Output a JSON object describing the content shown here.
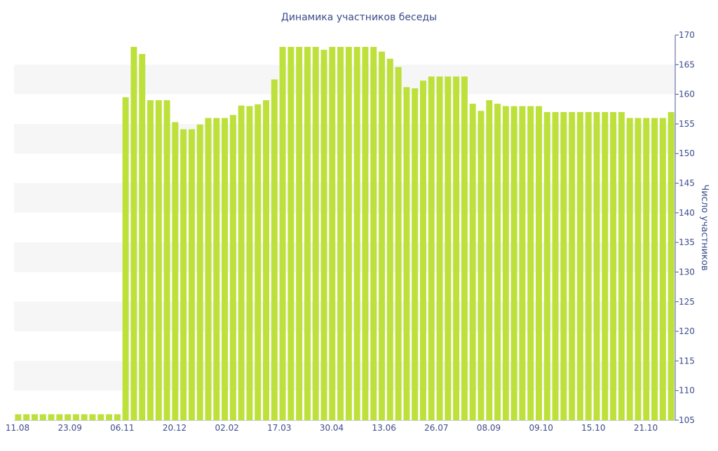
{
  "chart_data": {
    "type": "bar",
    "title": "Динамика участников беседы",
    "xlabel": "",
    "ylabel": "Число участников",
    "ylim": [
      105,
      170
    ],
    "yticks": [
      105,
      110,
      115,
      120,
      125,
      130,
      135,
      140,
      145,
      150,
      155,
      160,
      165,
      170
    ],
    "y_axis_side": "right",
    "grid": "alternating horizontal bands",
    "legend": "none",
    "x_tick_labels": [
      "11.08",
      "23.09",
      "06.11",
      "20.12",
      "02.02",
      "17.03",
      "30.04",
      "13.06",
      "26.07",
      "08.09",
      "09.10",
      "15.10",
      "21.10"
    ],
    "values": [
      106,
      106,
      106,
      106,
      106,
      106,
      106,
      106,
      106,
      106,
      106,
      106,
      106,
      159.5,
      168,
      166.8,
      159,
      159,
      159,
      155.3,
      154.1,
      154.1,
      154.9,
      156,
      156,
      156,
      156.5,
      158.1,
      158,
      158.3,
      159,
      162.5,
      168,
      168,
      168,
      168,
      168,
      167.5,
      168,
      168,
      168,
      168,
      168,
      168,
      167.2,
      166,
      164.6,
      161.2,
      161,
      162.3,
      163,
      163,
      163,
      163,
      163,
      158.4,
      157.2,
      159,
      158.4,
      158,
      158,
      158,
      158,
      158,
      157,
      157,
      157,
      157,
      157,
      157,
      157,
      157,
      157,
      157,
      156,
      156,
      156,
      156,
      156,
      157
    ],
    "colors": {
      "bar": "#bde03a",
      "band": "#f6f6f6",
      "axis": "#4b5a96",
      "text": "#3d4b8a"
    }
  }
}
